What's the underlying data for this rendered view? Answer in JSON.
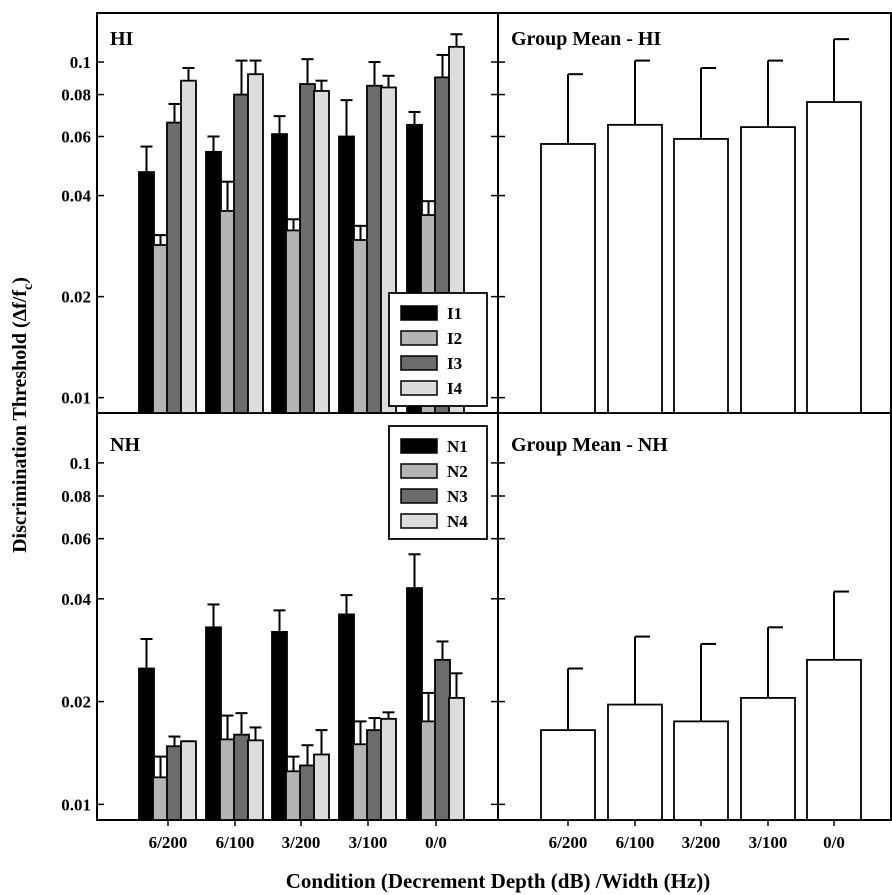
{
  "figure": {
    "ylabel": "Discrimination Threshold (Δf/f",
    "ylabel_sub": "c",
    "ylabel_close": ")",
    "xlabel": "Condition (Decrement Depth (dB) /Width (Hz))"
  },
  "chart_data": [
    {
      "type": "bar",
      "id": "hi",
      "title": "HI",
      "scale": "log",
      "ylim": [
        0.009,
        0.14
      ],
      "yticks": [
        0.01,
        0.02,
        0.04,
        0.06,
        0.08,
        0.1
      ],
      "ytick_labels": [
        "0.01",
        "0.02",
        "0.04",
        "0.06",
        "0.08",
        "0.1"
      ],
      "categories": [
        "6/200",
        "6/100",
        "3/200",
        "3/100",
        "0/0"
      ],
      "show_xticklabels": false,
      "show_ytick_labels": true,
      "legend": "bottom-right",
      "series": [
        {
          "name": "I1",
          "color": "#000000",
          "values": [
            0.047,
            0.054,
            0.061,
            0.06,
            0.065
          ],
          "errors": [
            0.056,
            0.06,
            0.069,
            0.077,
            0.071
          ]
        },
        {
          "name": "I2",
          "color": "#b4b4b4",
          "values": [
            0.0285,
            0.036,
            0.0315,
            0.0295,
            0.035
          ],
          "errors": [
            0.0305,
            0.044,
            0.034,
            0.0325,
            0.0385
          ]
        },
        {
          "name": "I3",
          "color": "#6c6c6c",
          "values": [
            0.066,
            0.08,
            0.086,
            0.085,
            0.09
          ],
          "errors": [
            0.075,
            0.101,
            0.102,
            0.1,
            0.105
          ]
        },
        {
          "name": "I4",
          "color": "#dcdcdc",
          "values": [
            0.088,
            0.092,
            0.082,
            0.084,
            0.111
          ],
          "errors": [
            0.096,
            0.101,
            0.088,
            0.091,
            0.121
          ]
        }
      ]
    },
    {
      "type": "bar",
      "id": "group-hi",
      "title": "Group Mean - HI",
      "scale": "log",
      "ylim": [
        0.009,
        0.14
      ],
      "categories": [
        "6/200",
        "6/100",
        "3/200",
        "3/100",
        "0/0"
      ],
      "show_xticklabels": false,
      "show_ytick_labels": false,
      "series": [
        {
          "name": "",
          "color": "#ffffff",
          "values": [
            0.057,
            0.065,
            0.059,
            0.064,
            0.076
          ],
          "errors": [
            0.092,
            0.101,
            0.096,
            0.101,
            0.117
          ]
        }
      ]
    },
    {
      "type": "bar",
      "id": "nh",
      "title": "NH",
      "scale": "log",
      "ylim": [
        0.009,
        0.14
      ],
      "yticks": [
        0.01,
        0.02,
        0.04,
        0.06,
        0.08,
        0.1
      ],
      "ytick_labels": [
        "0.01",
        "0.02",
        "0.04",
        "0.06",
        "0.08",
        "0.1"
      ],
      "categories": [
        "6/200",
        "6/100",
        "3/200",
        "3/100",
        "0/0"
      ],
      "show_xticklabels": true,
      "show_ytick_labels": true,
      "legend": "top-right",
      "series": [
        {
          "name": "N1",
          "color": "#000000",
          "values": [
            0.025,
            0.033,
            0.032,
            0.036,
            0.043
          ],
          "errors": [
            0.0305,
            0.0385,
            0.037,
            0.041,
            0.054
          ]
        },
        {
          "name": "N2",
          "color": "#b4b4b4",
          "values": [
            0.012,
            0.0155,
            0.0125,
            0.015,
            0.0175
          ],
          "errors": [
            0.0138,
            0.0182,
            0.0138,
            0.0175,
            0.0212
          ]
        },
        {
          "name": "N3",
          "color": "#6c6c6c",
          "values": [
            0.0148,
            0.016,
            0.013,
            0.0165,
            0.0265
          ],
          "errors": [
            0.0158,
            0.0185,
            0.0149,
            0.0179,
            0.03
          ]
        },
        {
          "name": "N4",
          "color": "#dcdcdc",
          "values": [
            0.0153,
            0.0154,
            0.014,
            0.0178,
            0.0205
          ],
          "errors": [
            0.0153,
            0.0168,
            0.0165,
            0.0186,
            0.0242
          ]
        }
      ]
    },
    {
      "type": "bar",
      "id": "group-nh",
      "title": "Group Mean - NH",
      "scale": "log",
      "ylim": [
        0.009,
        0.14
      ],
      "categories": [
        "6/200",
        "6/100",
        "3/200",
        "3/100",
        "0/0"
      ],
      "show_xticklabels": true,
      "show_ytick_labels": false,
      "series": [
        {
          "name": "",
          "color": "#ffffff",
          "values": [
            0.0165,
            0.0196,
            0.0175,
            0.0205,
            0.0265
          ],
          "errors": [
            0.025,
            0.031,
            0.0295,
            0.033,
            0.042
          ]
        }
      ]
    }
  ]
}
